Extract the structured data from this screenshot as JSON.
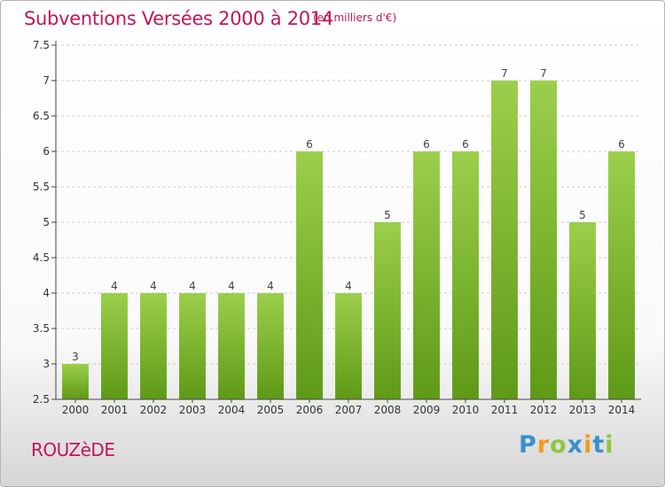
{
  "header": {
    "title": "Subventions Versées 2000 à 2014",
    "subtitle": "(en milliers d'€)"
  },
  "footer": {
    "commune": "ROUZèDE",
    "logo": {
      "text": "Proxiti",
      "letters": [
        {
          "ch": "P",
          "color": "#3a8fd0"
        },
        {
          "ch": "r",
          "color": "#f29a1e"
        },
        {
          "ch": "o",
          "color": "#8cc63f"
        },
        {
          "ch": "x",
          "color": "#3a8fd0"
        },
        {
          "ch": "i",
          "color": "#f29a1e"
        },
        {
          "ch": "t",
          "color": "#3a8fd0"
        },
        {
          "ch": "i",
          "color": "#8cc63f"
        }
      ]
    }
  },
  "colors": {
    "accent": "#c0175a",
    "bar_top": "#9ccf4b",
    "bar_bottom": "#5e9a16",
    "axis": "#444444",
    "grid": "#cccccc"
  },
  "chart_data": {
    "type": "bar",
    "categories": [
      "2000",
      "2001",
      "2002",
      "2003",
      "2004",
      "2005",
      "2006",
      "2007",
      "2008",
      "2009",
      "2010",
      "2011",
      "2012",
      "2013",
      "2014"
    ],
    "values": [
      3,
      4,
      4,
      4,
      4,
      4,
      6,
      4,
      5,
      6,
      6,
      7,
      7,
      5,
      6
    ],
    "ylim": [
      2.5,
      7.5
    ],
    "yticks": [
      "2.5",
      "3",
      "3.5",
      "4",
      "4.5",
      "5",
      "5.5",
      "6",
      "6.5",
      "7",
      "7.5"
    ],
    "grid": "horizontal dashed",
    "legend": "none"
  }
}
